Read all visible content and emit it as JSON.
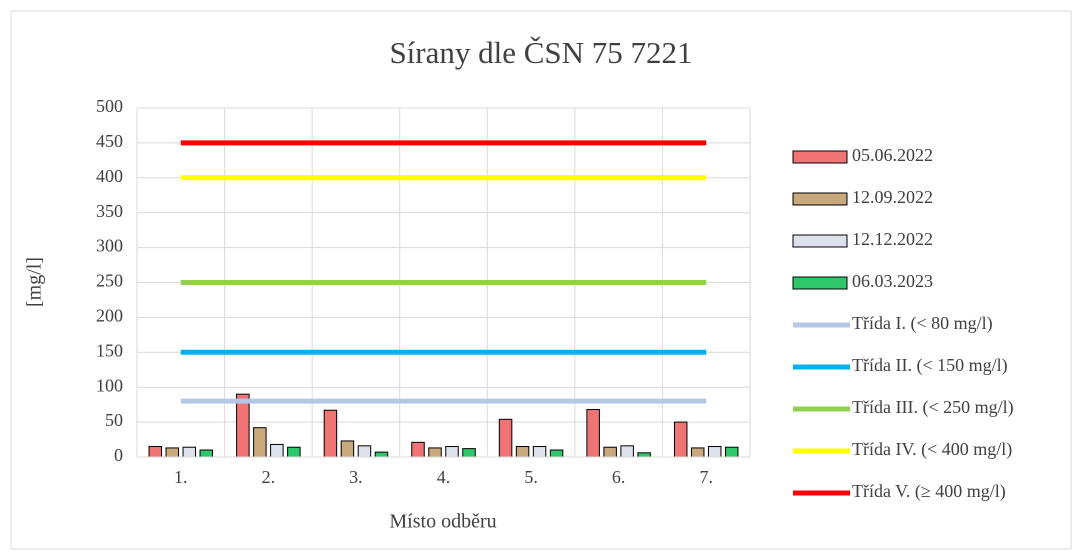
{
  "chart_data": {
    "type": "bar",
    "title": "Sírany dle ČSN 75 7221",
    "x_label": "Místo odběru",
    "y_label": "[mg/l]",
    "categories": [
      "1.",
      "2.",
      "3.",
      "4.",
      "5.",
      "6.",
      "7."
    ],
    "ylim": [
      0,
      500
    ],
    "yticks": [
      0,
      50,
      100,
      150,
      200,
      250,
      300,
      350,
      400,
      450,
      500
    ],
    "grid": true,
    "legend": "right",
    "series": [
      {
        "name": "05.06.2022",
        "color": "#f07474",
        "values": [
          15,
          90,
          67,
          21,
          54,
          68,
          50
        ]
      },
      {
        "name": "12.09.2022",
        "color": "#c9a97c",
        "values": [
          13,
          42,
          23,
          13,
          15,
          14,
          13
        ]
      },
      {
        "name": "12.12.2022",
        "color": "#dde1ec",
        "values": [
          14,
          18,
          16,
          15,
          15,
          16,
          15
        ]
      },
      {
        "name": "06.03.2023",
        "color": "#2ec76a",
        "values": [
          10,
          14,
          7,
          12,
          10,
          6,
          14
        ]
      },
      {
        "name": "Třída I. (< 80 mg/l)",
        "type": "line",
        "color": "#b4c7e7",
        "values": [
          80,
          80,
          80,
          80,
          80,
          80,
          80
        ]
      },
      {
        "name": "Třída II. (< 150 mg/l)",
        "type": "line",
        "color": "#00b0f0",
        "values": [
          150,
          150,
          150,
          150,
          150,
          150,
          150
        ]
      },
      {
        "name": "Třída III. (< 250 mg/l)",
        "type": "line",
        "color": "#92d050",
        "values": [
          250,
          250,
          250,
          250,
          250,
          250,
          250
        ]
      },
      {
        "name": "Třída IV. (< 400 mg/l)",
        "type": "line",
        "color": "#ffff00",
        "values": [
          400,
          400,
          400,
          400,
          400,
          400,
          400
        ]
      },
      {
        "name": "Třída V. (≥ 400 mg/l)",
        "type": "line",
        "color": "#ff0000",
        "values": [
          450,
          450,
          450,
          450,
          450,
          450,
          450
        ]
      }
    ]
  }
}
